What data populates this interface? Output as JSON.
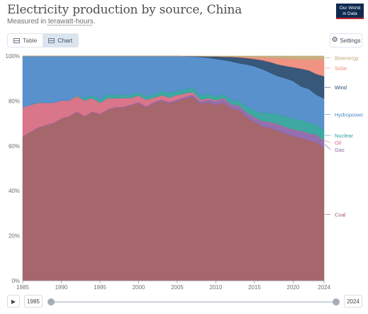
{
  "header": {
    "title": "Electricity production by source, China",
    "subtitle_prefix": "Measured in ",
    "subtitle_link": "terawatt-hours",
    "subtitle_suffix": ".",
    "logo_line1": "Our World",
    "logo_line2": "in Data"
  },
  "tabs": [
    {
      "label": "Table",
      "icon": "table-icon",
      "active": false
    },
    {
      "label": "Chart",
      "icon": "chart-icon",
      "active": true
    }
  ],
  "settings_label": "Settings",
  "timeline": {
    "start": "1985",
    "end": "2024"
  },
  "colors": {
    "Coal": "#9e5a5f",
    "Gas": "#8b63a8",
    "Oil": "#d66a80",
    "Nuclear": "#2ea19a",
    "Hydropower": "#4b88c9",
    "Wind": "#274a6e",
    "Solar": "#ef8a78",
    "Bioenergy": "#c6a778"
  },
  "chart_data": {
    "type": "area",
    "stacked": true,
    "relative": true,
    "x": [
      1985,
      1986,
      1987,
      1988,
      1989,
      1990,
      1991,
      1992,
      1993,
      1994,
      1995,
      1996,
      1997,
      1998,
      1999,
      2000,
      2001,
      2002,
      2003,
      2004,
      2005,
      2006,
      2007,
      2008,
      2009,
      2010,
      2011,
      2012,
      2013,
      2014,
      2015,
      2016,
      2017,
      2018,
      2019,
      2020,
      2021,
      2022,
      2023,
      2024
    ],
    "xticks": [
      "1985",
      "1990",
      "1995",
      "2000",
      "2005",
      "2010",
      "2015",
      "2020",
      "2024"
    ],
    "yticks": [
      "0%",
      "20%",
      "40%",
      "60%",
      "80%",
      "100%"
    ],
    "ylim": [
      0,
      100
    ],
    "series": [
      {
        "name": "Coal",
        "values": [
          64,
          66,
          68,
          69,
          70,
          72,
          73,
          75,
          73,
          75,
          74,
          76,
          77,
          77,
          78,
          79,
          77,
          79,
          80,
          79,
          80,
          81,
          82,
          78,
          79,
          78,
          79,
          76,
          75,
          71,
          69,
          67,
          66,
          65,
          64,
          63,
          62,
          61,
          60,
          58
        ]
      },
      {
        "name": "Gas",
        "values": [
          0.2,
          0.2,
          0.2,
          0.2,
          0.2,
          0.2,
          0.2,
          0.2,
          0.2,
          0.2,
          0.2,
          0.2,
          0.2,
          0.3,
          0.3,
          0.4,
          0.5,
          0.5,
          0.5,
          0.5,
          0.6,
          0.8,
          0.9,
          1.0,
          1.2,
          1.5,
          1.8,
          1.7,
          1.8,
          2.0,
          2.0,
          2.2,
          2.5,
          2.6,
          2.7,
          2.8,
          3.0,
          2.9,
          3.0,
          3.1
        ]
      },
      {
        "name": "Oil",
        "values": [
          13,
          12,
          11,
          10,
          9,
          8,
          7,
          7,
          7,
          6,
          5,
          5,
          4,
          4,
          3,
          3,
          3,
          2,
          2,
          2,
          2,
          1.5,
          1.2,
          0.8,
          0.6,
          0.5,
          0.3,
          0.2,
          0.2,
          0.2,
          0.2,
          0.2,
          0.2,
          0.2,
          0.2,
          0.2,
          0.2,
          0.2,
          0.2,
          0.2
        ]
      },
      {
        "name": "Nuclear",
        "values": [
          0,
          0,
          0,
          0,
          0,
          0,
          0,
          0.5,
          1,
          1.5,
          1.5,
          1.5,
          1.5,
          1.5,
          1.5,
          1.5,
          1.5,
          1.5,
          2,
          2,
          2,
          2,
          1.9,
          2.0,
          1.9,
          1.8,
          1.9,
          1.9,
          2.1,
          2.4,
          3.0,
          3.6,
          3.9,
          4.2,
          4.7,
          4.7,
          4.8,
          4.7,
          4.6,
          4.4
        ]
      },
      {
        "name": "Hydropower",
        "values": [
          22.8,
          21.8,
          20.8,
          20.8,
          20.8,
          19.8,
          19.8,
          17.3,
          18.8,
          17.3,
          19.3,
          17.3,
          17.3,
          17.2,
          17.2,
          16.1,
          18.0,
          17.0,
          15.5,
          16.5,
          15.4,
          14.5,
          13.8,
          17.0,
          16.0,
          16.6,
          15.0,
          17.0,
          16.5,
          18.5,
          19.0,
          19.0,
          17.5,
          16.5,
          16.5,
          16.5,
          14.5,
          14.6,
          12.8,
          13.9
        ]
      },
      {
        "name": "Wind",
        "values": [
          0,
          0,
          0,
          0,
          0,
          0,
          0,
          0,
          0,
          0,
          0,
          0,
          0,
          0,
          0,
          0,
          0,
          0,
          0,
          0,
          0,
          0.1,
          0.2,
          0.3,
          0.6,
          1.1,
          1.5,
          2.0,
          2.6,
          2.8,
          3.2,
          3.9,
          4.6,
          5.1,
          5.4,
          6.0,
          7.7,
          8.1,
          9.0,
          9.8
        ]
      },
      {
        "name": "Solar",
        "values": [
          0,
          0,
          0,
          0,
          0,
          0,
          0,
          0,
          0,
          0,
          0,
          0,
          0,
          0,
          0,
          0,
          0,
          0,
          0,
          0,
          0,
          0,
          0,
          0,
          0,
          0,
          0,
          0.1,
          0.2,
          0.4,
          0.7,
          1.1,
          1.7,
          2.5,
          3.1,
          3.6,
          4.0,
          4.7,
          6.2,
          7.1
        ]
      },
      {
        "name": "Bioenergy",
        "values": [
          0,
          0,
          0,
          0,
          0,
          0,
          0,
          0,
          0,
          0,
          0,
          0,
          0,
          0,
          0,
          0,
          0,
          0,
          0,
          0,
          0,
          0.1,
          0.1,
          0.1,
          0.2,
          0.2,
          0.3,
          0.3,
          0.4,
          0.5,
          0.6,
          0.7,
          0.9,
          1.1,
          1.2,
          1.3,
          1.5,
          1.5,
          1.6,
          1.7
        ]
      }
    ]
  }
}
